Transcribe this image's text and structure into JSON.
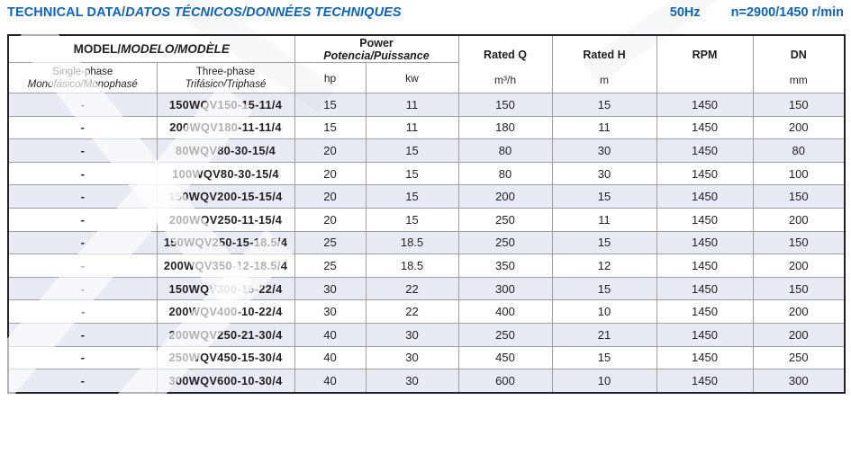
{
  "page": {
    "title_plain": "TECHNICAL DATA/",
    "title_italic": "DATOS TÉCNICOS/DONNÉES TECHNIQUES",
    "frequency": "50Hz",
    "speed": "n=2900/1450 r/min",
    "accent_color": "#1063ae"
  },
  "table": {
    "header": {
      "model_label": "MODEL/",
      "model_label_italic": "MODELO/MODÈLE",
      "single_phase": "Single-phase",
      "single_phase_italic": "Monofásico/Monophasé",
      "three_phase": "Three-phase",
      "three_phase_italic": "Trifásico/Triphasé",
      "power_label": "Power",
      "power_label_italic": "Potencia/Puissance",
      "hp": "hp",
      "kw": "kw",
      "rated_q_label": "Rated Q",
      "rated_q_unit": "m³/h",
      "rated_h_label": "Rated H",
      "rated_h_unit": "m",
      "rpm_label": "RPM",
      "rpm_unit": "",
      "dn_label": "DN",
      "dn_unit": "mm"
    },
    "rows": [
      {
        "single_phase": "-",
        "model": "150WQV150-15-11/4",
        "hp": "15",
        "kw": "11",
        "rated_q": "150",
        "rated_h": "15",
        "rpm": "1450",
        "dn": "150"
      },
      {
        "single_phase": "-",
        "model": "200WQV180-11-11/4",
        "hp": "15",
        "kw": "11",
        "rated_q": "180",
        "rated_h": "11",
        "rpm": "1450",
        "dn": "200"
      },
      {
        "single_phase": "-",
        "model": "80WQV80-30-15/4",
        "hp": "20",
        "kw": "15",
        "rated_q": "80",
        "rated_h": "30",
        "rpm": "1450",
        "dn": "80"
      },
      {
        "single_phase": "-",
        "model": "100WQV80-30-15/4",
        "hp": "20",
        "kw": "15",
        "rated_q": "80",
        "rated_h": "30",
        "rpm": "1450",
        "dn": "100"
      },
      {
        "single_phase": "-",
        "model": "150WQV200-15-15/4",
        "hp": "20",
        "kw": "15",
        "rated_q": "200",
        "rated_h": "15",
        "rpm": "1450",
        "dn": "150"
      },
      {
        "single_phase": "-",
        "model": "200WQV250-11-15/4",
        "hp": "20",
        "kw": "15",
        "rated_q": "250",
        "rated_h": "11",
        "rpm": "1450",
        "dn": "200"
      },
      {
        "single_phase": "-",
        "model": "150WQV250-15-18.5/4",
        "hp": "25",
        "kw": "18.5",
        "rated_q": "250",
        "rated_h": "15",
        "rpm": "1450",
        "dn": "150"
      },
      {
        "single_phase": "-",
        "model": "200WQV350-12-18.5/4",
        "hp": "25",
        "kw": "18.5",
        "rated_q": "350",
        "rated_h": "12",
        "rpm": "1450",
        "dn": "200"
      },
      {
        "single_phase": "-",
        "model": "150WQV300-15-22/4",
        "hp": "30",
        "kw": "22",
        "rated_q": "300",
        "rated_h": "15",
        "rpm": "1450",
        "dn": "150"
      },
      {
        "single_phase": "-",
        "model": "200WQV400-10-22/4",
        "hp": "30",
        "kw": "22",
        "rated_q": "400",
        "rated_h": "10",
        "rpm": "1450",
        "dn": "200"
      },
      {
        "single_phase": "-",
        "model": "200WQV250-21-30/4",
        "hp": "40",
        "kw": "30",
        "rated_q": "250",
        "rated_h": "21",
        "rpm": "1450",
        "dn": "200"
      },
      {
        "single_phase": "-",
        "model": "250WQV450-15-30/4",
        "hp": "40",
        "kw": "30",
        "rated_q": "450",
        "rated_h": "15",
        "rpm": "1450",
        "dn": "250"
      },
      {
        "single_phase": "-",
        "model": "300WQV600-10-30/4",
        "hp": "40",
        "kw": "30",
        "rated_q": "600",
        "rated_h": "10",
        "rpm": "1450",
        "dn": "300"
      }
    ],
    "colors": {
      "row_shade": "#e8ebf3",
      "grid_line": "#9fa0a5",
      "outer_border": "#222226"
    }
  }
}
